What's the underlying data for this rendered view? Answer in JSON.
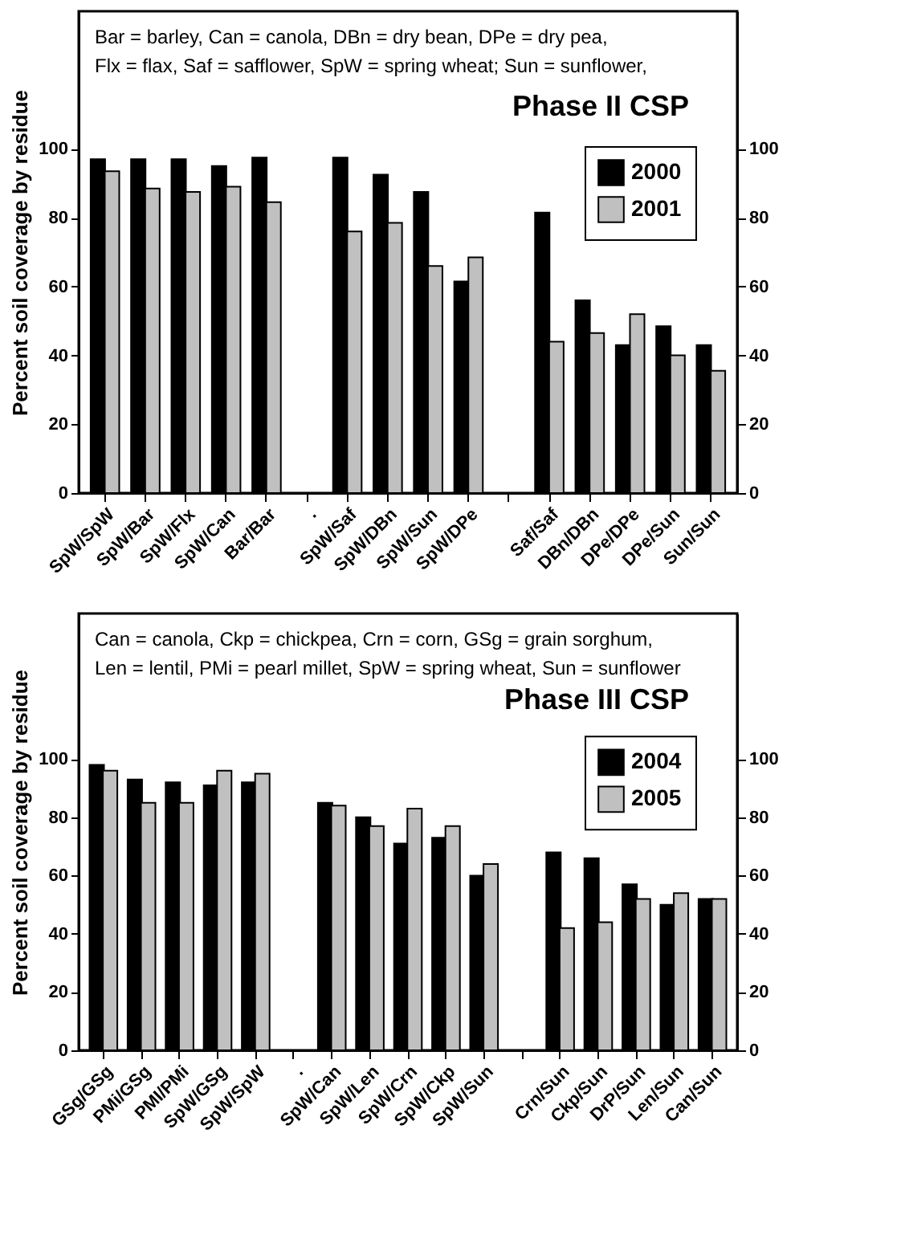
{
  "chart_data": [
    {
      "type": "bar",
      "title": "Phase II CSP",
      "ylabel": "Percent soil coverage by residue",
      "annotations": [
        "Bar = barley, Can = canola, DBn = dry bean, DPe = dry pea,",
        "Flx = flax, Saf = safflower, SpW = spring wheat; Sun = sunflower,"
      ],
      "categories": [
        "SpW/SpW",
        "SpW/Bar",
        "SpW/Flx",
        "SpW/Can",
        "Bar/Bar",
        ".",
        "SpW/Saf",
        "SpW/DBn",
        "SpW/Sun",
        "SpW/DPe",
        null,
        "Saf/Saf",
        "DBn/DBn",
        "DPe/DPe",
        "DPe/Sun",
        "Sun/Sun"
      ],
      "series": [
        {
          "name": "2000",
          "color": "#000000",
          "values": [
            97,
            97,
            97,
            95,
            97.5,
            null,
            97.5,
            92.5,
            87.5,
            61.5,
            null,
            81.5,
            56,
            43,
            48.5,
            43
          ]
        },
        {
          "name": "2001",
          "color": "#c0c0c0",
          "values": [
            93.5,
            88.5,
            87.5,
            89,
            84.5,
            null,
            76,
            78.5,
            66,
            68.5,
            null,
            44,
            46.5,
            52,
            40,
            35.5
          ]
        }
      ],
      "ylim": [
        0,
        140
      ],
      "yticks": [
        0,
        20,
        40,
        60,
        80,
        100
      ],
      "y2lim": [
        0,
        140
      ],
      "y2ticks": [
        0,
        20,
        40,
        60,
        80,
        100
      ],
      "grid": false,
      "legend": "top right"
    },
    {
      "type": "bar",
      "title": "Phase III CSP",
      "ylabel": "Percent soil coverage by residue",
      "annotations": [
        "Can = canola, Ckp = chickpea, Crn = corn, GSg = grain sorghum,",
        "Len = lentil, PMi = pearl millet, SpW = spring wheat, Sun = sunflower"
      ],
      "categories": [
        "GSg/GSg",
        "PMi/GSg",
        "PMI/PMi",
        "SpW/GSg",
        "SpW/SpW",
        ".",
        "SpW/Can",
        "SpW/Len",
        "SpW/Crn",
        "SpW/Ckp",
        "SpW/Sun",
        null,
        "Crn/Sun",
        "Ckp/Sun",
        "DrP/Sun",
        "Len/Sun",
        "Can/Sun"
      ],
      "series": [
        {
          "name": "2004",
          "color": "#000000",
          "values": [
            98,
            93,
            92,
            91,
            92,
            null,
            85,
            80,
            71,
            73,
            60,
            null,
            68,
            66,
            57,
            50,
            52
          ]
        },
        {
          "name": "2005",
          "color": "#c0c0c0",
          "values": [
            96,
            85,
            85,
            96,
            95,
            null,
            84,
            77,
            83,
            77,
            64,
            null,
            42,
            44,
            52,
            54,
            52
          ]
        }
      ],
      "ylim": [
        0,
        150
      ],
      "yticks": [
        0,
        20,
        40,
        60,
        80,
        100
      ],
      "y2lim": [
        0,
        150
      ],
      "y2ticks": [
        0,
        20,
        40,
        60,
        80,
        100
      ],
      "grid": false,
      "legend": "top right"
    }
  ]
}
